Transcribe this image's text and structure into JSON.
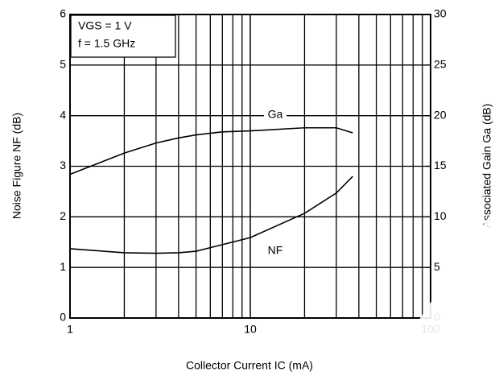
{
  "chart_data": {
    "type": "line",
    "annotations": [
      "VGS = 1 V",
      "f = 1.5 GHz"
    ],
    "xlabel": "Collector Current IC (mA)",
    "ylabel": "Noise Figure NF (dB)",
    "y2label": "Associated Gain Ga (dB)",
    "xscale": "log",
    "xlim": [
      1,
      100
    ],
    "xticks": [
      1,
      10,
      100
    ],
    "xgrid": [
      2,
      3,
      4,
      5,
      6,
      7,
      8,
      9,
      20,
      30,
      40,
      50,
      60,
      70,
      80,
      90
    ],
    "ylim": [
      0,
      6
    ],
    "yticks": [
      0,
      1,
      2,
      3,
      4,
      5,
      6
    ],
    "y2lim": [
      0,
      30
    ],
    "y2ticks": [
      0,
      5,
      10,
      15,
      20,
      25,
      30
    ],
    "grid": true,
    "x": [
      1,
      2,
      3,
      4,
      5,
      7,
      10,
      20,
      30,
      37
    ],
    "series": [
      {
        "name": "Ga",
        "color": "#000000",
        "axis": "y2",
        "values": [
          14.2,
          16.3,
          17.3,
          17.8,
          18.1,
          18.4,
          18.5,
          18.8,
          18.8,
          18.3
        ]
      },
      {
        "name": "NF",
        "color": "#000000",
        "values": [
          1.37,
          1.29,
          1.28,
          1.29,
          1.32,
          1.45,
          1.59,
          2.07,
          2.47,
          2.8
        ]
      }
    ]
  }
}
